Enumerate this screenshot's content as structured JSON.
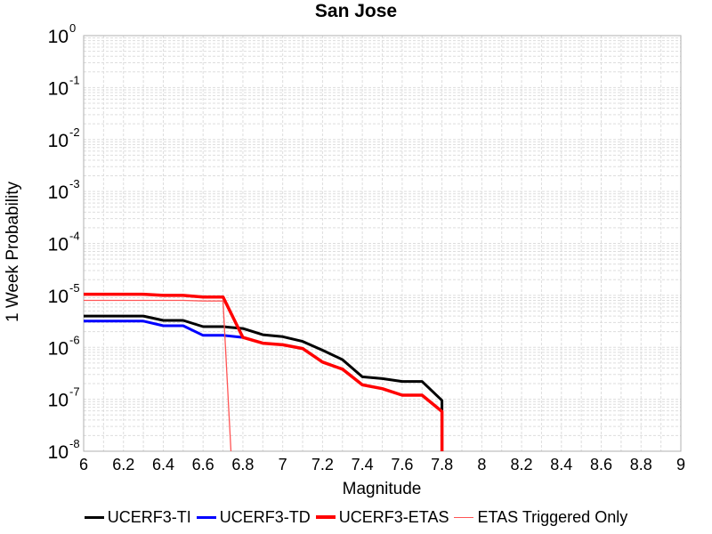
{
  "chart_data": {
    "type": "line",
    "title": "San Jose",
    "xlabel": "Magnitude",
    "ylabel": "1 Week Probability",
    "xlim": [
      6,
      9
    ],
    "ylim": [
      1e-08,
      1
    ],
    "yscale": "log",
    "grid": true,
    "legend_position": "bottom",
    "x_ticks": [
      "6",
      "6.2",
      "6.4",
      "6.6",
      "6.8",
      "7",
      "7.2",
      "7.4",
      "7.6",
      "7.8",
      "8",
      "8.2",
      "8.4",
      "8.6",
      "8.8",
      "9"
    ],
    "y_ticks": [
      {
        "value": 1,
        "base": "10",
        "exp": "0"
      },
      {
        "value": 0.1,
        "base": "10",
        "exp": "-1"
      },
      {
        "value": 0.01,
        "base": "10",
        "exp": "-2"
      },
      {
        "value": 0.001,
        "base": "10",
        "exp": "-3"
      },
      {
        "value": 0.0001,
        "base": "10",
        "exp": "-4"
      },
      {
        "value": 1e-05,
        "base": "10",
        "exp": "-5"
      },
      {
        "value": 1e-06,
        "base": "10",
        "exp": "-6"
      },
      {
        "value": 1e-07,
        "base": "10",
        "exp": "-7"
      },
      {
        "value": 1e-08,
        "base": "10",
        "exp": "-8"
      }
    ],
    "series": [
      {
        "name": "UCERF3-TI",
        "color": "#000000",
        "width": 3,
        "x": [
          6.0,
          6.3,
          6.4,
          6.5,
          6.6,
          6.7,
          6.8,
          6.9,
          7.0,
          7.1,
          7.2,
          7.3,
          7.4,
          7.5,
          7.6,
          7.7,
          7.8,
          7.8
        ],
        "y": [
          4e-06,
          4e-06,
          3.3e-06,
          3.3e-06,
          2.5e-06,
          2.5e-06,
          2.3e-06,
          1.75e-06,
          1.6e-06,
          1.3e-06,
          8.8e-07,
          5.8e-07,
          2.7e-07,
          2.5e-07,
          2.2e-07,
          2.2e-07,
          9.5e-08,
          1e-08
        ]
      },
      {
        "name": "UCERF3-TD",
        "color": "#0000ff",
        "width": 3,
        "x": [
          6.0,
          6.3,
          6.4,
          6.5,
          6.6,
          6.7,
          6.8
        ],
        "y": [
          3.2e-06,
          3.2e-06,
          2.6e-06,
          2.6e-06,
          1.7e-06,
          1.7e-06,
          1.55e-06
        ]
      },
      {
        "name": "UCERF3-ETAS",
        "color": "#ff0000",
        "width": 3.5,
        "x": [
          6.0,
          6.3,
          6.4,
          6.5,
          6.6,
          6.7,
          6.8,
          6.9,
          7.0,
          7.1,
          7.2,
          7.3,
          7.4,
          7.5,
          7.6,
          7.7,
          7.8,
          7.8
        ],
        "y": [
          1.05e-05,
          1.05e-05,
          1e-05,
          1e-05,
          9.3e-06,
          9.3e-06,
          1.55e-06,
          1.2e-06,
          1.12e-06,
          9.5e-07,
          5.2e-07,
          3.8e-07,
          1.9e-07,
          1.6e-07,
          1.2e-07,
          1.2e-07,
          5.8e-08,
          1e-08
        ]
      },
      {
        "name": "ETAS Triggered Only",
        "color": "#ff5555",
        "width": 1.3,
        "x": [
          6.0,
          6.3,
          6.4,
          6.5,
          6.6,
          6.7,
          6.74
        ],
        "y": [
          8e-06,
          8e-06,
          8e-06,
          8e-06,
          7.8e-06,
          7.8e-06,
          1e-08
        ]
      }
    ]
  }
}
